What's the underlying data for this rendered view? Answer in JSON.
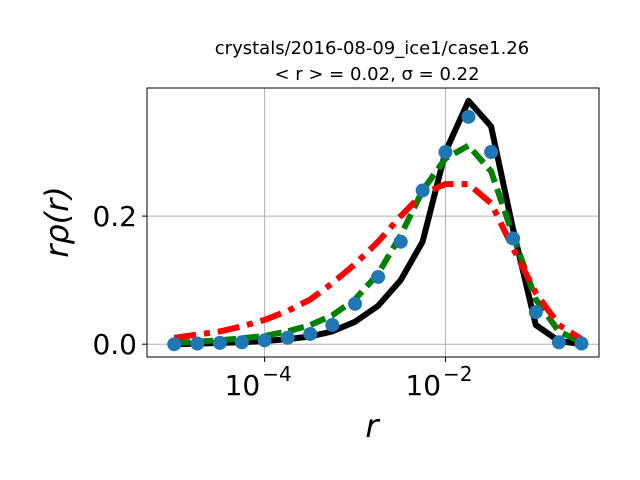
{
  "chart_data": {
    "type": "line",
    "title_line1": "crystals/2016-08-09_ice1/case1.26",
    "title_line2": "< r > = 0.02, σ = 0.22",
    "xlabel": "r",
    "ylabel": "rρ(r)",
    "x_scale": "log",
    "xlim": [
      5e-06,
      0.5
    ],
    "ylim": [
      -0.02,
      0.4
    ],
    "grid": true,
    "x_ticks": [
      {
        "value": 0.0001,
        "base": "10",
        "exp": "−4"
      },
      {
        "value": 0.01,
        "base": "10",
        "exp": "−2"
      }
    ],
    "y_ticks": [
      {
        "value": 0.0,
        "label": "0.0"
      },
      {
        "value": 0.2,
        "label": "0.2"
      }
    ],
    "series": [
      {
        "style": "solid",
        "color": "#000000",
        "x": [
          1e-05,
          1.8e-05,
          3.2e-05,
          5.6e-05,
          0.0001,
          0.00018,
          0.00032,
          0.00056,
          0.001,
          0.0018,
          0.0032,
          0.0056,
          0.01,
          0.018,
          0.032,
          0.056,
          0.1,
          0.18,
          0.32
        ],
        "y": [
          0.0,
          0.001,
          0.002,
          0.003,
          0.005,
          0.008,
          0.012,
          0.02,
          0.035,
          0.06,
          0.1,
          0.16,
          0.3,
          0.38,
          0.34,
          0.18,
          0.03,
          0.005,
          0.0
        ]
      },
      {
        "style": "dashed",
        "color": "#008000",
        "x": [
          1e-05,
          1.8e-05,
          3.2e-05,
          5.6e-05,
          0.0001,
          0.00018,
          0.00032,
          0.00056,
          0.001,
          0.0018,
          0.0032,
          0.0056,
          0.01,
          0.018,
          0.032,
          0.056,
          0.1,
          0.18,
          0.32
        ],
        "y": [
          0.002,
          0.004,
          0.006,
          0.009,
          0.013,
          0.02,
          0.03,
          0.045,
          0.07,
          0.11,
          0.17,
          0.24,
          0.29,
          0.31,
          0.27,
          0.17,
          0.07,
          0.02,
          0.003
        ]
      },
      {
        "style": "dashdot",
        "color": "#ff0000",
        "x": [
          1e-05,
          1.8e-05,
          3.2e-05,
          5.6e-05,
          0.0001,
          0.00018,
          0.00032,
          0.00056,
          0.001,
          0.0018,
          0.0032,
          0.0056,
          0.01,
          0.018,
          0.032,
          0.056,
          0.1,
          0.18,
          0.32
        ],
        "y": [
          0.01,
          0.015,
          0.02,
          0.028,
          0.038,
          0.052,
          0.07,
          0.095,
          0.125,
          0.16,
          0.2,
          0.235,
          0.25,
          0.25,
          0.22,
          0.15,
          0.08,
          0.03,
          0.008
        ]
      },
      {
        "style": "markers",
        "color": "#1f77b4",
        "x": [
          1e-05,
          1.8e-05,
          3.2e-05,
          5.6e-05,
          0.0001,
          0.00018,
          0.00032,
          0.00056,
          0.001,
          0.0018,
          0.0032,
          0.0056,
          0.01,
          0.018,
          0.032,
          0.056,
          0.1,
          0.18,
          0.32
        ],
        "y": [
          0.0,
          0.001,
          0.002,
          0.003,
          0.006,
          0.01,
          0.016,
          0.03,
          0.063,
          0.105,
          0.16,
          0.24,
          0.3,
          0.355,
          0.3,
          0.165,
          0.05,
          0.003,
          0.001
        ]
      }
    ]
  }
}
